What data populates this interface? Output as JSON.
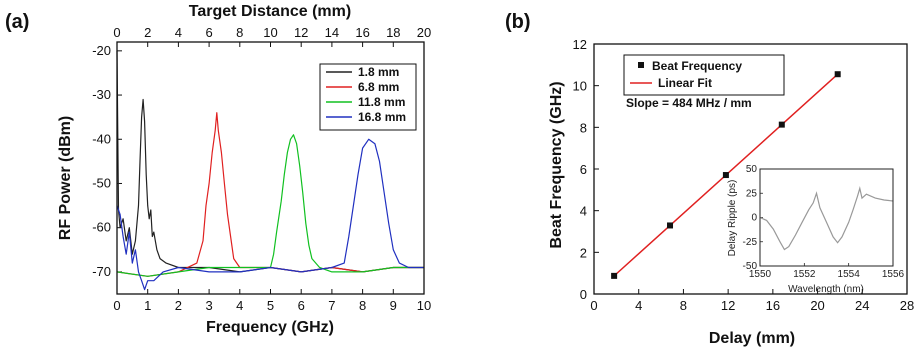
{
  "chart_data": [
    {
      "panel": "(a)",
      "type": "line",
      "xlabel": "Frequency (GHz)",
      "ylabel": "RF Power (dBm)",
      "top_xlabel": "Target Distance (mm)",
      "xlim": [
        0,
        10
      ],
      "ylim": [
        -75,
        -18
      ],
      "xticks": [
        0,
        1,
        2,
        3,
        4,
        5,
        6,
        7,
        8,
        9,
        10
      ],
      "yticks": [
        -70,
        -60,
        -50,
        -40,
        -30,
        -20
      ],
      "top_xticks": [
        0,
        2,
        4,
        6,
        8,
        10,
        12,
        14,
        16,
        18,
        20
      ],
      "legend_position": "top-right",
      "series": [
        {
          "name": "1.8 mm",
          "color": "#222222",
          "points": [
            [
              0.0,
              -20
            ],
            [
              0.05,
              -56
            ],
            [
              0.1,
              -60
            ],
            [
              0.2,
              -58
            ],
            [
              0.3,
              -63
            ],
            [
              0.4,
              -60
            ],
            [
              0.5,
              -66
            ],
            [
              0.6,
              -63
            ],
            [
              0.7,
              -55
            ],
            [
              0.75,
              -45
            ],
            [
              0.8,
              -35
            ],
            [
              0.85,
              -31
            ],
            [
              0.9,
              -36
            ],
            [
              0.95,
              -48
            ],
            [
              1.0,
              -55
            ],
            [
              1.05,
              -58
            ],
            [
              1.1,
              -56
            ],
            [
              1.15,
              -62
            ],
            [
              1.2,
              -61
            ],
            [
              1.3,
              -65
            ],
            [
              1.4,
              -67
            ],
            [
              1.6,
              -68
            ],
            [
              2.0,
              -69
            ],
            [
              3.0,
              -69
            ],
            [
              4.0,
              -70
            ],
            [
              5.0,
              -69
            ],
            [
              6.0,
              -70
            ],
            [
              7.0,
              -69
            ],
            [
              8.0,
              -70
            ],
            [
              9.0,
              -69
            ],
            [
              10.0,
              -69
            ]
          ]
        },
        {
          "name": "6.8 mm",
          "color": "#e02020",
          "points": [
            [
              0.0,
              -70
            ],
            [
              1.0,
              -71
            ],
            [
              2.0,
              -70
            ],
            [
              2.6,
              -68
            ],
            [
              2.8,
              -63
            ],
            [
              2.9,
              -55
            ],
            [
              3.0,
              -50
            ],
            [
              3.1,
              -43
            ],
            [
              3.2,
              -38
            ],
            [
              3.25,
              -34
            ],
            [
              3.3,
              -38
            ],
            [
              3.4,
              -43
            ],
            [
              3.5,
              -50
            ],
            [
              3.6,
              -57
            ],
            [
              3.7,
              -62
            ],
            [
              3.8,
              -67
            ],
            [
              4.0,
              -69
            ],
            [
              5.0,
              -69
            ],
            [
              6.0,
              -70
            ],
            [
              7.0,
              -69
            ],
            [
              8.0,
              -70
            ],
            [
              9.0,
              -69
            ],
            [
              10.0,
              -69
            ]
          ]
        },
        {
          "name": "11.8 mm",
          "color": "#10c020",
          "points": [
            [
              0.0,
              -70
            ],
            [
              1.0,
              -71
            ],
            [
              2.0,
              -70
            ],
            [
              3.0,
              -69
            ],
            [
              4.0,
              -69
            ],
            [
              5.0,
              -69
            ],
            [
              5.1,
              -66
            ],
            [
              5.2,
              -61
            ],
            [
              5.35,
              -54
            ],
            [
              5.45,
              -48
            ],
            [
              5.55,
              -43
            ],
            [
              5.65,
              -40
            ],
            [
              5.75,
              -39
            ],
            [
              5.85,
              -41
            ],
            [
              5.95,
              -46
            ],
            [
              6.05,
              -52
            ],
            [
              6.15,
              -59
            ],
            [
              6.25,
              -64
            ],
            [
              6.35,
              -67
            ],
            [
              6.6,
              -69
            ],
            [
              7.0,
              -70
            ],
            [
              8.0,
              -70
            ],
            [
              9.0,
              -69
            ],
            [
              10.0,
              -69
            ]
          ]
        },
        {
          "name": "16.8 mm",
          "color": "#2030c0",
          "points": [
            [
              0.0,
              -55
            ],
            [
              0.1,
              -57
            ],
            [
              0.2,
              -62
            ],
            [
              0.3,
              -66
            ],
            [
              0.4,
              -61
            ],
            [
              0.5,
              -68
            ],
            [
              0.6,
              -65
            ],
            [
              0.7,
              -70
            ],
            [
              0.8,
              -72
            ],
            [
              0.9,
              -74
            ],
            [
              1.0,
              -72
            ],
            [
              1.2,
              -72
            ],
            [
              1.5,
              -70
            ],
            [
              2.0,
              -69
            ],
            [
              3.0,
              -70
            ],
            [
              4.0,
              -70
            ],
            [
              5.0,
              -69
            ],
            [
              6.0,
              -70
            ],
            [
              7.0,
              -69
            ],
            [
              7.4,
              -68
            ],
            [
              7.55,
              -62
            ],
            [
              7.7,
              -55
            ],
            [
              7.85,
              -48
            ],
            [
              8.0,
              -42
            ],
            [
              8.2,
              -40
            ],
            [
              8.4,
              -41
            ],
            [
              8.55,
              -45
            ],
            [
              8.7,
              -52
            ],
            [
              8.85,
              -59
            ],
            [
              9.0,
              -65
            ],
            [
              9.2,
              -68
            ],
            [
              9.5,
              -69
            ],
            [
              10.0,
              -69
            ]
          ]
        }
      ]
    },
    {
      "panel": "(b)",
      "type": "scatter",
      "xlabel": "Delay (mm)",
      "ylabel": "Beat Frequency (GHz)",
      "xlim": [
        0,
        28
      ],
      "ylim": [
        0,
        12
      ],
      "xticks": [
        0,
        4,
        8,
        12,
        16,
        20,
        24,
        28
      ],
      "yticks": [
        0,
        2,
        4,
        6,
        8,
        10,
        12
      ],
      "legend_position": "top-left",
      "annotation": "Slope = 484 MHz / mm",
      "series": [
        {
          "name": "Beat Frequency",
          "kind": "markers",
          "color": "#111111",
          "points": [
            [
              1.8,
              0.87
            ],
            [
              6.8,
              3.29
            ],
            [
              11.8,
              5.71
            ],
            [
              16.8,
              8.13
            ],
            [
              21.8,
              10.55
            ]
          ]
        },
        {
          "name": "Linear Fit",
          "kind": "line",
          "color": "#e02020",
          "points": [
            [
              1.8,
              0.87
            ],
            [
              21.8,
              10.55
            ]
          ]
        }
      ],
      "inset": {
        "type": "line",
        "xlabel": "Wavelength (nm)",
        "ylabel": "Delay Ripple (ps)",
        "xlim": [
          1550,
          1556
        ],
        "ylim": [
          -50,
          50
        ],
        "xticks": [
          1550,
          1552,
          1554,
          1556
        ],
        "yticks": [
          -50,
          -25,
          0,
          25,
          50
        ],
        "color": "#999999",
        "points": [
          [
            1550.0,
            0
          ],
          [
            1550.3,
            -3
          ],
          [
            1550.6,
            -12
          ],
          [
            1550.9,
            -25
          ],
          [
            1551.1,
            -33
          ],
          [
            1551.3,
            -30
          ],
          [
            1551.6,
            -18
          ],
          [
            1551.9,
            -5
          ],
          [
            1552.2,
            8
          ],
          [
            1552.4,
            15
          ],
          [
            1552.55,
            25
          ],
          [
            1552.7,
            10
          ],
          [
            1553.0,
            -5
          ],
          [
            1553.3,
            -20
          ],
          [
            1553.5,
            -26
          ],
          [
            1553.7,
            -20
          ],
          [
            1554.0,
            -5
          ],
          [
            1554.2,
            8
          ],
          [
            1554.4,
            22
          ],
          [
            1554.5,
            30
          ],
          [
            1554.6,
            20
          ],
          [
            1554.8,
            24
          ],
          [
            1555.2,
            20
          ],
          [
            1555.6,
            18
          ],
          [
            1556.0,
            17
          ]
        ]
      }
    }
  ],
  "legend_a": [
    "1.8 mm",
    "6.8 mm",
    "11.8 mm",
    "16.8 mm"
  ],
  "legend_b": [
    "Beat Frequency",
    "Linear Fit"
  ]
}
